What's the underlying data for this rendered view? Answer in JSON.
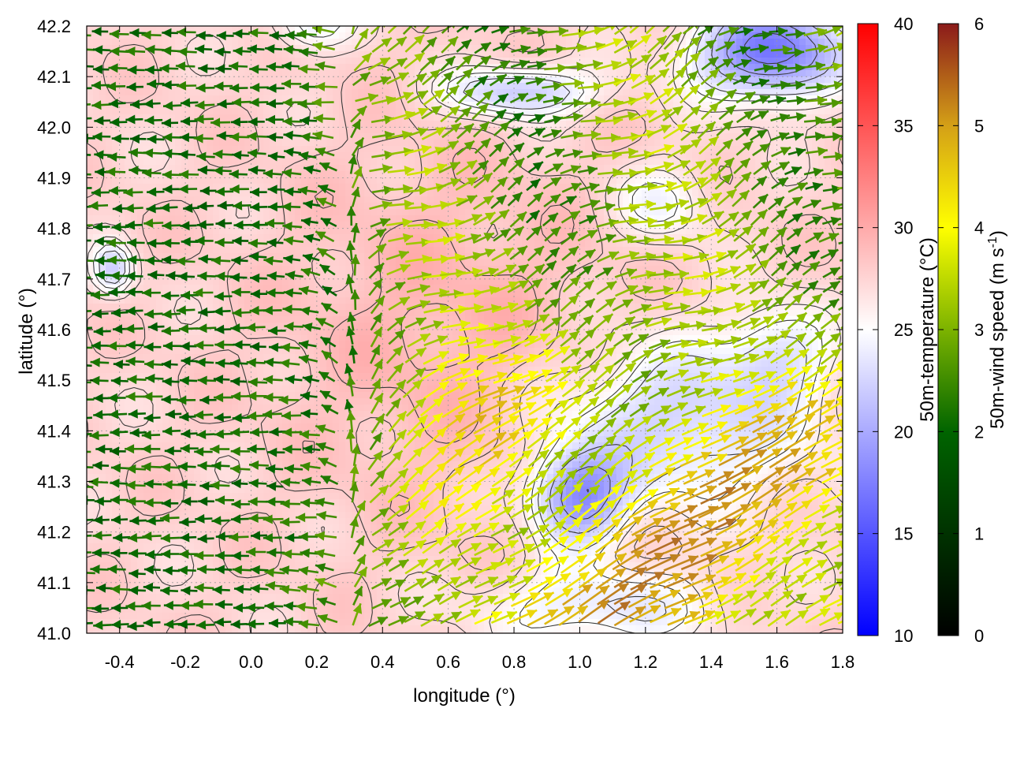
{
  "chart_data": {
    "type": "vector-field-map",
    "xlabel": "longitude (°)",
    "ylabel": "latitude (°)",
    "xlim": [
      -0.5,
      1.8
    ],
    "ylim": [
      41.0,
      42.2
    ],
    "x_ticks": [
      -0.4,
      -0.2,
      0.0,
      0.2,
      0.4,
      0.6,
      0.8,
      1.0,
      1.2,
      1.4,
      1.6,
      1.8
    ],
    "x_tick_labels": [
      "-0.4",
      "-0.2",
      "0.0",
      "0.2",
      "0.4",
      "0.6",
      "0.8",
      "1.0",
      "1.2",
      "1.4",
      "1.6",
      "1.8"
    ],
    "y_ticks": [
      41.0,
      41.1,
      41.2,
      41.3,
      41.4,
      41.5,
      41.6,
      41.7,
      41.8,
      41.9,
      42.0,
      42.1,
      42.2
    ],
    "y_tick_labels": [
      "41.0",
      "41.1",
      "41.2",
      "41.3",
      "41.4",
      "41.5",
      "41.6",
      "41.7",
      "41.8",
      "41.9",
      "42.0",
      "42.1",
      "42.2"
    ],
    "grid": true,
    "colorbars": [
      {
        "name": "temperature",
        "title": "50m-temperature (°C)",
        "range": [
          10,
          40
        ],
        "ticks": [
          10,
          15,
          20,
          25,
          30,
          35,
          40
        ],
        "tick_labels": [
          "10",
          "15",
          "20",
          "25",
          "30",
          "35",
          "40"
        ],
        "palette": [
          "#0000ff",
          "#ffffff",
          "#ff0000"
        ]
      },
      {
        "name": "wind_speed",
        "title_main": "50m-wind speed (m s",
        "title_sup": "-1",
        "title_end": ")",
        "range": [
          0,
          6
        ],
        "ticks": [
          0,
          1,
          2,
          3,
          4,
          5,
          6
        ],
        "tick_labels": [
          "0",
          "1",
          "2",
          "3",
          "4",
          "5",
          "6"
        ],
        "palette": [
          "#000000",
          "#006400",
          "#7cb300",
          "#ffff00",
          "#d4a017",
          "#a0522d",
          "#8b1a1a"
        ]
      }
    ],
    "temperature_field_description": "warm (~27-29 °C) over the western and central area, cool (~15-22 °C) patches in the north-east (around 1.6°E, 42.1°N) and south-east (around 1.0°E, 41.25°N)",
    "wind_regimes": [
      {
        "region": "west of 0.4°E",
        "direction_from": "east",
        "speed_ms": 2.0
      },
      {
        "region": "north-central",
        "direction_from": "south-west",
        "speed_ms": 3.0
      },
      {
        "region": "south-east",
        "direction_from": "south-west",
        "speed_ms": 4.5
      }
    ]
  }
}
